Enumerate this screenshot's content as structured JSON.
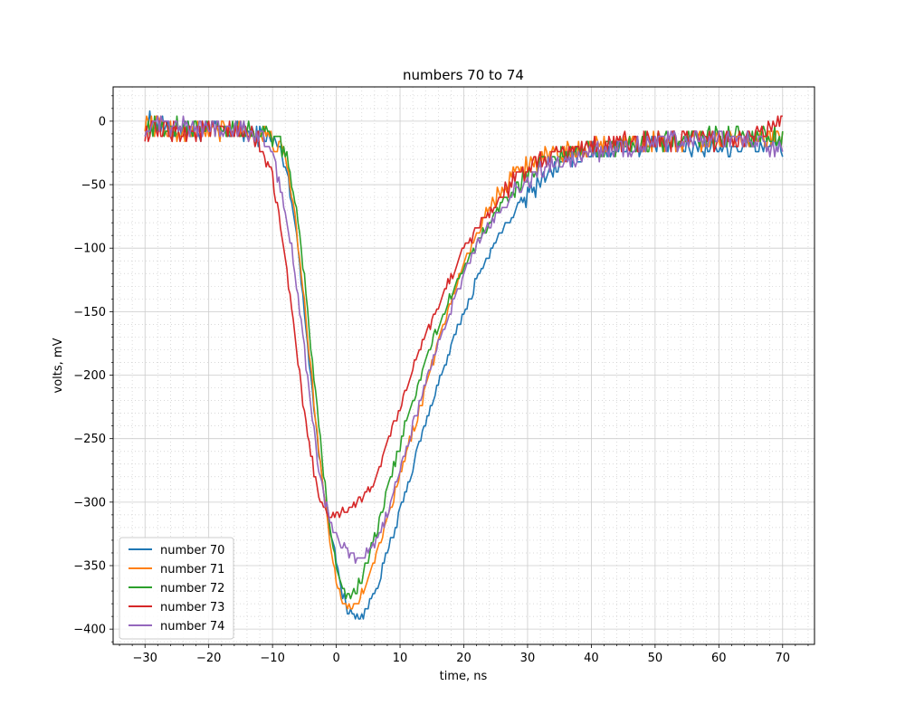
{
  "chart_data": {
    "type": "line",
    "title": "numbers 70 to 74",
    "xlabel": "time, ns",
    "ylabel": "volts, mV",
    "xlim": [
      -35,
      75
    ],
    "ylim": [
      -412,
      27
    ],
    "xticks": [
      -30,
      -20,
      -10,
      0,
      10,
      20,
      30,
      40,
      50,
      60,
      70
    ],
    "yticks": [
      0,
      -50,
      -100,
      -150,
      -200,
      -250,
      -300,
      -350,
      -400
    ],
    "grid": true,
    "legend_position": "lower-left",
    "series": [
      {
        "name": "number 70",
        "color": "#1f77b4",
        "x": [
          -30,
          -25,
          -20,
          -15,
          -11,
          -9,
          -8,
          -7,
          -6,
          -5,
          -4,
          -3,
          -2,
          -1,
          0,
          1,
          2,
          3,
          4,
          5,
          6,
          7,
          8,
          9,
          10,
          11,
          12,
          13,
          14,
          15,
          16,
          17,
          18,
          19,
          20,
          21,
          22,
          23,
          24,
          25,
          26,
          27,
          28,
          29,
          30,
          31,
          32,
          33,
          34,
          35,
          36,
          37,
          38,
          40,
          42,
          45,
          50,
          55,
          60,
          65,
          70
        ],
        "y": [
          0,
          -8,
          -8,
          -8,
          -12,
          -20,
          -35,
          -60,
          -100,
          -150,
          -200,
          -250,
          -290,
          -320,
          -348,
          -372,
          -386,
          -391,
          -390,
          -382,
          -370,
          -355,
          -340,
          -325,
          -308,
          -290,
          -272,
          -255,
          -238,
          -222,
          -206,
          -192,
          -178,
          -164,
          -150,
          -138,
          -125,
          -114,
          -104,
          -95,
          -86,
          -78,
          -71,
          -64,
          -58,
          -52,
          -46,
          -42,
          -38,
          -35,
          -32,
          -28,
          -26,
          -24,
          -22,
          -20,
          -20,
          -20,
          -20,
          -20,
          -20
        ]
      },
      {
        "name": "number 71",
        "color": "#ff7f0e",
        "x": [
          -30,
          -25,
          -20,
          -15,
          -11,
          -9,
          -8,
          -7,
          -6,
          -5,
          -4,
          -3,
          -2,
          -1,
          0,
          1,
          2,
          3,
          4,
          5,
          6,
          7,
          8,
          9,
          10,
          11,
          12,
          13,
          14,
          15,
          16,
          17,
          18,
          19,
          20,
          21,
          22,
          23,
          24,
          25,
          26,
          27,
          28,
          29,
          30,
          32,
          34,
          36,
          38,
          40,
          45,
          50,
          55,
          60,
          65,
          70
        ],
        "y": [
          0,
          -8,
          -8,
          -8,
          -12,
          -20,
          -32,
          -55,
          -95,
          -145,
          -195,
          -245,
          -290,
          -330,
          -360,
          -378,
          -383,
          -380,
          -372,
          -360,
          -346,
          -330,
          -314,
          -297,
          -280,
          -262,
          -245,
          -228,
          -210,
          -192,
          -174,
          -158,
          -142,
          -126,
          -112,
          -100,
          -89,
          -78,
          -68,
          -59,
          -52,
          -46,
          -41,
          -37,
          -34,
          -30,
          -27,
          -24,
          -22,
          -20,
          -18,
          -16,
          -15,
          -14,
          -14,
          -14
        ]
      },
      {
        "name": "number 72",
        "color": "#2ca02c",
        "x": [
          -30,
          -25,
          -20,
          -15,
          -10,
          -8,
          -7,
          -6,
          -5,
          -4,
          -3,
          -2,
          -1,
          0,
          1,
          2,
          3,
          4,
          5,
          6,
          7,
          8,
          9,
          10,
          11,
          12,
          13,
          14,
          15,
          16,
          17,
          18,
          19,
          20,
          21,
          22,
          23,
          24,
          25,
          26,
          27,
          28,
          29,
          30,
          32,
          34,
          36,
          38,
          40,
          45,
          50,
          55,
          60,
          65,
          70
        ],
        "y": [
          -5,
          -5,
          -5,
          -5,
          -12,
          -25,
          -45,
          -80,
          -125,
          -175,
          -225,
          -275,
          -320,
          -350,
          -370,
          -375,
          -370,
          -360,
          -345,
          -328,
          -310,
          -292,
          -273,
          -255,
          -237,
          -220,
          -205,
          -190,
          -176,
          -162,
          -150,
          -138,
          -126,
          -115,
          -105,
          -96,
          -88,
          -80,
          -72,
          -65,
          -58,
          -52,
          -47,
          -42,
          -36,
          -31,
          -27,
          -24,
          -22,
          -19,
          -16,
          -14,
          -13,
          -12,
          -12
        ]
      },
      {
        "name": "number 73",
        "color": "#d62728",
        "x": [
          -30,
          -25,
          -20,
          -15,
          -12,
          -11,
          -10,
          -9,
          -8,
          -7,
          -6,
          -5,
          -4,
          -3,
          -2,
          -1,
          0,
          1,
          2,
          3,
          4,
          5,
          6,
          7,
          8,
          9,
          10,
          11,
          12,
          13,
          14,
          15,
          16,
          17,
          18,
          19,
          20,
          21,
          22,
          23,
          24,
          25,
          26,
          27,
          28,
          29,
          30,
          32,
          34,
          36,
          38,
          40,
          45,
          50,
          55,
          60,
          65,
          70
        ],
        "y": [
          -8,
          -8,
          -8,
          -8,
          -15,
          -30,
          -45,
          -70,
          -110,
          -150,
          -190,
          -230,
          -262,
          -290,
          -305,
          -310,
          -312,
          -308,
          -305,
          -303,
          -298,
          -292,
          -282,
          -270,
          -256,
          -240,
          -225,
          -210,
          -195,
          -182,
          -170,
          -158,
          -146,
          -134,
          -122,
          -111,
          -100,
          -92,
          -85,
          -78,
          -71,
          -65,
          -59,
          -53,
          -47,
          -42,
          -38,
          -32,
          -27,
          -24,
          -22,
          -20,
          -18,
          -16,
          -15,
          -14,
          -14,
          0
        ]
      },
      {
        "name": "number 74",
        "color": "#9467bd",
        "x": [
          -30,
          -25,
          -20,
          -15,
          -12,
          -10,
          -9,
          -8,
          -7,
          -6,
          -5,
          -4,
          -3,
          -2,
          -1,
          0,
          1,
          2,
          3,
          4,
          5,
          6,
          7,
          8,
          9,
          10,
          11,
          12,
          13,
          14,
          15,
          16,
          17,
          18,
          19,
          20,
          21,
          22,
          23,
          24,
          25,
          26,
          27,
          28,
          29,
          30,
          32,
          34,
          36,
          38,
          40,
          45,
          50,
          55,
          60,
          65,
          70
        ],
        "y": [
          -5,
          -5,
          -5,
          -5,
          -12,
          -25,
          -45,
          -70,
          -100,
          -140,
          -180,
          -225,
          -265,
          -295,
          -315,
          -328,
          -335,
          -340,
          -345,
          -345,
          -340,
          -333,
          -322,
          -308,
          -292,
          -275,
          -258,
          -240,
          -222,
          -206,
          -190,
          -176,
          -162,
          -148,
          -135,
          -122,
          -110,
          -99,
          -90,
          -82,
          -75,
          -68,
          -62,
          -56,
          -51,
          -46,
          -40,
          -34,
          -30,
          -27,
          -24,
          -20,
          -17,
          -15,
          -14,
          -14,
          -25
        ]
      }
    ]
  }
}
